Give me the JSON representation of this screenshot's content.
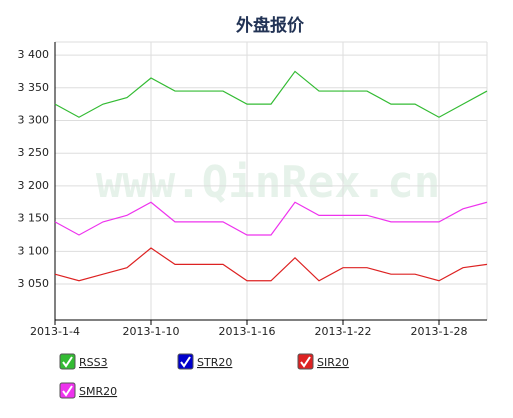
{
  "chart_data": {
    "type": "line",
    "title": "外盘报价",
    "watermark": "www.QinRex.cn",
    "categories": [
      "2013-1-4",
      null,
      null,
      null,
      "2013-1-10",
      null,
      null,
      null,
      "2013-1-16",
      null,
      null,
      null,
      "2013-1-22",
      null,
      null,
      null,
      "2013-1-28",
      null,
      null
    ],
    "series": [
      {
        "name": "RSS3",
        "color": "#33bb33",
        "values": [
          3325,
          3305,
          3325,
          3335,
          3365,
          3345,
          3345,
          3345,
          3325,
          3325,
          3375,
          3345,
          3345,
          3345,
          3325,
          3325,
          3305,
          3325,
          3345
        ]
      },
      {
        "name": "STR20",
        "color": "#0000cc",
        "values": [
          null,
          null,
          null,
          null,
          null,
          null,
          null,
          null,
          null,
          null,
          null,
          null,
          null,
          null,
          null,
          null,
          null,
          null,
          null
        ]
      },
      {
        "name": "SIR20",
        "color": "#dd2222",
        "values": [
          3065,
          3055,
          3065,
          3075,
          3105,
          3080,
          3080,
          3080,
          3055,
          3055,
          3090,
          3055,
          3075,
          3075,
          3065,
          3065,
          3055,
          3075,
          3080
        ]
      },
      {
        "name": "SMR20",
        "color": "#ee33ee",
        "values": [
          3145,
          3125,
          3145,
          3155,
          3175,
          3145,
          3145,
          3145,
          3125,
          3125,
          3175,
          3155,
          3155,
          3155,
          3145,
          3145,
          3145,
          3165,
          3175
        ]
      }
    ],
    "ylim": [
      2995,
      3420
    ],
    "yticks": [
      {
        "value": 3050,
        "label": "3 050"
      },
      {
        "value": 3100,
        "label": "3 100"
      },
      {
        "value": 3150,
        "label": "3 150"
      },
      {
        "value": 3200,
        "label": "3 200"
      },
      {
        "value": 3250,
        "label": "3 250"
      },
      {
        "value": 3300,
        "label": "3 300"
      },
      {
        "value": 3350,
        "label": "3 350"
      },
      {
        "value": 3400,
        "label": "3 400"
      }
    ],
    "grid": true
  }
}
